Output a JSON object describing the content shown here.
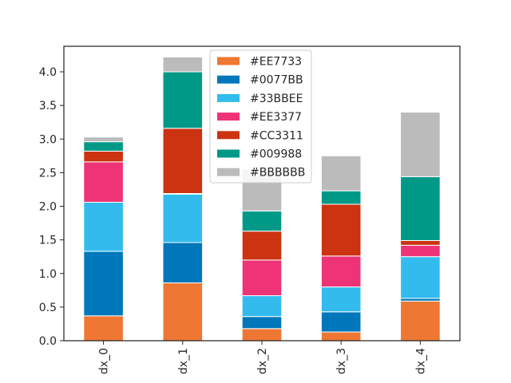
{
  "chart_data": {
    "type": "bar",
    "stacked": true,
    "categories": [
      "dx_0",
      "dx_1",
      "dx_2",
      "dx_3",
      "dx_4"
    ],
    "series": [
      {
        "name": "#EE7733",
        "color": "#EE7733",
        "values": [
          0.37,
          0.86,
          0.18,
          0.13,
          0.59
        ]
      },
      {
        "name": "#0077BB",
        "color": "#0077BB",
        "values": [
          0.96,
          0.6,
          0.18,
          0.3,
          0.04
        ]
      },
      {
        "name": "#33BBEE",
        "color": "#33BBEE",
        "values": [
          0.73,
          0.72,
          0.31,
          0.37,
          0.62
        ]
      },
      {
        "name": "#EE3377",
        "color": "#EE3377",
        "values": [
          0.6,
          0.01,
          0.53,
          0.46,
          0.17
        ]
      },
      {
        "name": "#CC3311",
        "color": "#CC3311",
        "values": [
          0.16,
          0.97,
          0.43,
          0.77,
          0.07
        ]
      },
      {
        "name": "#009988",
        "color": "#009988",
        "values": [
          0.14,
          0.84,
          0.3,
          0.2,
          0.95
        ]
      },
      {
        "name": "#BBBBBB",
        "color": "#BBBBBB",
        "values": [
          0.07,
          0.22,
          0.62,
          0.52,
          0.96
        ]
      }
    ],
    "ylim": [
      0,
      4.38
    ],
    "yticks": [
      "0.0",
      "0.5",
      "1.0",
      "1.5",
      "2.0",
      "2.5",
      "3.0",
      "3.5",
      "4.0"
    ],
    "legend_position": "upper-center",
    "grid": false
  }
}
